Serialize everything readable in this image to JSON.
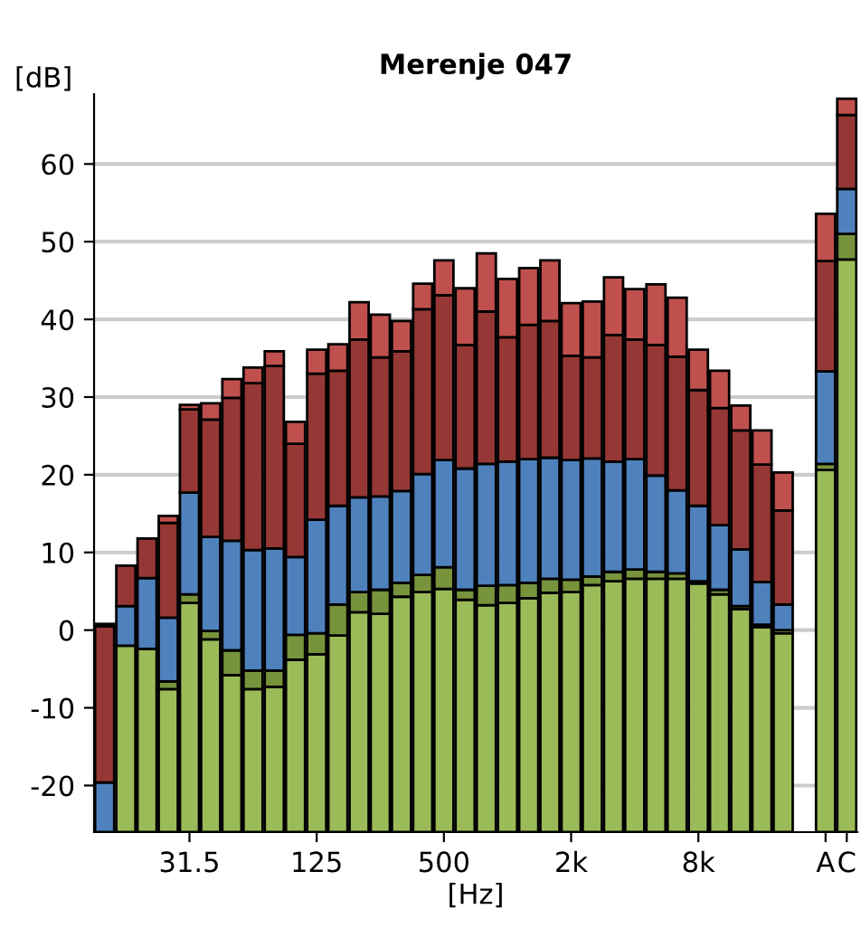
{
  "chart_data": {
    "type": "bar",
    "title": "Merenje 047",
    "xlabel": "[Hz]",
    "ylabel": "[dB]",
    "categories": [
      null,
      null,
      null,
      null,
      "31.5",
      null,
      null,
      null,
      null,
      null,
      "125",
      null,
      null,
      null,
      null,
      null,
      "500",
      null,
      null,
      null,
      null,
      null,
      "2k",
      null,
      null,
      null,
      null,
      null,
      "8k",
      null,
      null,
      null,
      null,
      null,
      "A",
      "C"
    ],
    "series": [
      {
        "color": "#9bbb59",
        "base": [
          null,
          -26,
          -26,
          -26,
          -26,
          -26,
          -26,
          -26,
          -26,
          -26,
          -26,
          -26,
          -26,
          -26,
          -26,
          -26,
          -26,
          -26,
          -26,
          -26,
          -26,
          -26,
          -26,
          -26,
          -26,
          -26,
          -26,
          -26,
          -26,
          -26,
          -26,
          -26,
          -26,
          null,
          -26,
          -26
        ],
        "values": [
          null,
          24,
          23.6,
          18.4,
          29.5,
          24.8,
          20.2,
          18.4,
          18.7,
          22.2,
          22.9,
          25.3,
          28.3,
          28.1,
          30.3,
          30.9,
          31.3,
          29.9,
          29.2,
          29.5,
          30.1,
          30.8,
          30.9,
          31.8,
          32.3,
          32.6,
          32.6,
          32.6,
          32.0,
          30.6,
          28.7,
          26.4,
          25.6,
          null,
          46.6,
          73.7
        ]
      },
      {
        "color": "#77933c",
        "base": [
          null,
          null,
          null,
          -7.6,
          3.5,
          -1.2,
          -5.8,
          -7.6,
          -7.3,
          -3.8,
          -3.1,
          -0.7,
          2.3,
          2.1,
          4.3,
          4.9,
          5.3,
          3.9,
          3.2,
          3.5,
          4.1,
          4.8,
          4.9,
          5.8,
          6.3,
          6.6,
          6.6,
          6.6,
          6.0,
          4.6,
          2.7,
          0.4,
          -0.4,
          null,
          20.6,
          47.7
        ],
        "values": [
          null,
          null,
          null,
          1.0,
          1.1,
          1.1,
          3.2,
          2.4,
          2.1,
          3.2,
          2.7,
          4.0,
          2.6,
          3.1,
          1.8,
          2.2,
          2.8,
          1.3,
          2.5,
          2.3,
          2.0,
          1.8,
          1.6,
          1.1,
          1.2,
          1.2,
          0.9,
          0.7,
          0.3,
          0.6,
          0.4,
          0.3,
          0.4,
          null,
          0.8,
          3.3
        ]
      },
      {
        "color": "#4f81bd",
        "base": [
          -26,
          -2.0,
          -2.4,
          -6.6,
          4.6,
          -0.1,
          -2.6,
          -5.2,
          -5.2,
          -0.6,
          -0.4,
          3.3,
          4.9,
          5.2,
          6.1,
          7.1,
          8.1,
          5.2,
          5.7,
          5.8,
          6.1,
          6.6,
          6.5,
          6.9,
          7.5,
          7.8,
          7.5,
          7.3,
          6.3,
          5.2,
          3.1,
          0.7,
          0.0,
          null,
          21.4,
          51.0
        ],
        "values": [
          6.4,
          5.1,
          9.1,
          8.2,
          13.1,
          12.1,
          14.1,
          15.5,
          15.7,
          10.0,
          14.6,
          12.7,
          12.2,
          12.0,
          11.8,
          13.0,
          13.8,
          15.6,
          15.7,
          15.9,
          15.9,
          15.6,
          15.4,
          15.2,
          14.2,
          14.2,
          12.4,
          10.7,
          9.7,
          8.3,
          7.3,
          5.5,
          3.3,
          null,
          11.9,
          5.8
        ]
      },
      {
        "color": "#953735",
        "base": [
          -19.6,
          3.1,
          6.7,
          1.6,
          17.7,
          12.0,
          11.5,
          10.3,
          10.5,
          9.4,
          14.2,
          16.0,
          17.1,
          17.2,
          17.9,
          20.1,
          21.9,
          20.8,
          21.4,
          21.7,
          22.0,
          22.2,
          21.9,
          22.1,
          21.7,
          22.0,
          19.9,
          18.0,
          16.0,
          13.5,
          10.4,
          6.2,
          3.3,
          null,
          33.3,
          56.8
        ],
        "values": [
          20.1,
          5.2,
          5.1,
          12.2,
          10.7,
          15.1,
          18.4,
          21.5,
          23.5,
          14.6,
          18.8,
          17.4,
          20.3,
          17.9,
          18.0,
          21.2,
          21.2,
          15.9,
          19.6,
          16.0,
          17.3,
          17.6,
          13.4,
          13.0,
          16.3,
          15.4,
          16.8,
          17.2,
          14.9,
          15.1,
          15.3,
          15.1,
          12.1,
          null,
          14.2,
          9.5
        ]
      },
      {
        "color": "#c0504d",
        "base": [
          0.5,
          null,
          null,
          13.8,
          28.4,
          27.1,
          29.9,
          31.8,
          34.0,
          24.0,
          33.0,
          33.4,
          37.4,
          35.1,
          35.9,
          41.3,
          43.1,
          36.7,
          41.0,
          37.7,
          39.3,
          39.8,
          35.3,
          35.1,
          38.0,
          37.4,
          36.7,
          35.2,
          30.9,
          28.6,
          25.7,
          21.3,
          15.4,
          null,
          47.5,
          66.3
        ],
        "values": [
          0.3,
          null,
          null,
          0.9,
          0.6,
          2.1,
          2.4,
          2.0,
          1.9,
          2.8,
          3.1,
          3.4,
          4.8,
          5.5,
          3.9,
          3.3,
          4.5,
          7.3,
          7.5,
          7.5,
          7.3,
          7.8,
          6.8,
          7.2,
          7.4,
          6.5,
          7.8,
          7.6,
          5.2,
          4.8,
          3.2,
          4.4,
          4.9,
          null,
          6.1,
          2.1
        ]
      }
    ],
    "ylim": [
      -26,
      69
    ],
    "yticks": [
      -20,
      -10,
      0,
      10,
      20,
      30,
      40,
      50,
      60
    ],
    "grid": "y"
  }
}
